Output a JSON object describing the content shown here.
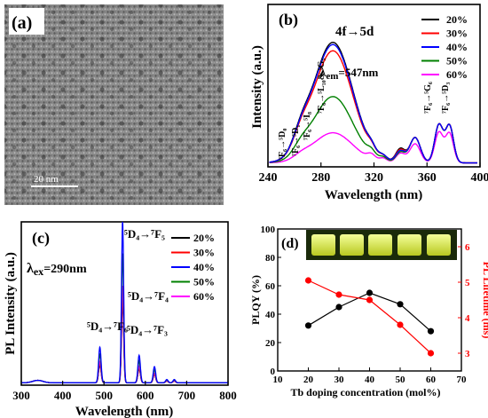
{
  "panels": {
    "a": {
      "tag": "(a)",
      "scale_bar": "20  nm"
    },
    "b": {
      "tag": "(b)",
      "annotation": "4f→5d",
      "lambda_label": "λ",
      "lambda_sub": "em",
      "lambda_value": "=547nm",
      "transitions": [
        "⁷F₆→⁵D₀",
        "⁷F₆→⁵D₁",
        "⁷F₆→⁵I₈",
        "⁷F₆→⁵L₁₀& ⁵G₅",
        "⁷F₆→⁵G₆",
        "⁷F₆→⁵D₃"
      ]
    },
    "c": {
      "tag": "(c)",
      "lambda_label": "λ",
      "lambda_sub": "ex",
      "lambda_value": "=290nm",
      "transitions": [
        "⁵D₄→⁷F₆",
        "⁵D₄→⁷F₅",
        "⁵D₄→⁷F₄",
        "⁵D₄→⁷F₃"
      ]
    },
    "d": {
      "tag": "(d)"
    }
  },
  "colors": {
    "20%": "#000000",
    "30%": "#ff0000",
    "40%": "#0000ff",
    "50%": "#008000",
    "60%": "#ff00ff",
    "plqy": "#000000",
    "lifetime": "#ff0000"
  },
  "chart_data": [
    {
      "type": "line",
      "panel": "b",
      "xlabel": "Wavelength (nm)",
      "ylabel": "Intensity (a.u.)",
      "xlim": [
        240,
        400
      ],
      "xticks": [
        240,
        280,
        320,
        360,
        400
      ],
      "legend": "top-right",
      "series": [
        {
          "name": "20%",
          "peak": 1.0
        },
        {
          "name": "30%",
          "peak": 0.93
        },
        {
          "name": "40%",
          "peak": 0.95
        },
        {
          "name": "50%",
          "peak": 0.55
        },
        {
          "name": "60%",
          "peak": 0.25
        }
      ]
    },
    {
      "type": "line",
      "panel": "c",
      "xlabel": "Wavelength (nm)",
      "ylabel": "PL Intensity (a.u.)",
      "xlim": [
        300,
        800
      ],
      "xticks": [
        300,
        400,
        500,
        600,
        700,
        800
      ],
      "legend": "top-right",
      "series": [
        {
          "name": "20%",
          "peak": 0.5
        },
        {
          "name": "30%",
          "peak": 0.55
        },
        {
          "name": "40%",
          "peak": 1.0
        },
        {
          "name": "50%",
          "peak": 0.8
        },
        {
          "name": "60%",
          "peak": 0.6
        }
      ]
    },
    {
      "type": "line",
      "panel": "d",
      "xlabel": "Tb doping concentration (mol%)",
      "ylabel": "PLQY (%)",
      "y2label": "PL Lifetime (ms)",
      "xlim": [
        10,
        70
      ],
      "ylim": [
        0,
        100
      ],
      "y2lim": [
        2.5,
        6.5
      ],
      "xticks": [
        10,
        20,
        30,
        40,
        50,
        60,
        70
      ],
      "yticks": [
        0,
        20,
        40,
        60,
        80,
        100
      ],
      "y2ticks": [
        3,
        4,
        5,
        6
      ],
      "x": [
        20,
        30,
        40,
        50,
        60
      ],
      "series": [
        {
          "name": "PLQY",
          "axis": "left",
          "values": [
            32,
            45,
            55,
            47,
            28
          ]
        },
        {
          "name": "PL Lifetime",
          "axis": "right",
          "values": [
            5.05,
            4.65,
            4.5,
            3.8,
            3.0
          ]
        }
      ]
    }
  ]
}
